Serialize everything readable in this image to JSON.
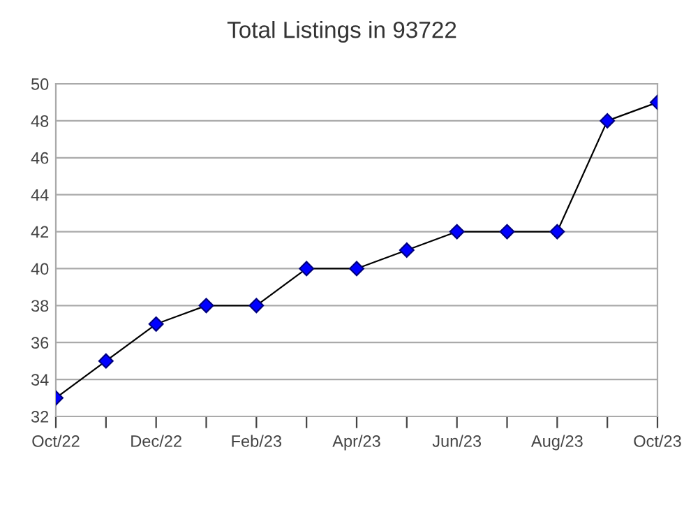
{
  "chart_data": {
    "type": "line",
    "title": "Total Listings in 93722",
    "categories": [
      "Oct/22",
      null,
      "Dec/22",
      null,
      "Feb/23",
      null,
      "Apr/23",
      null,
      "Jun/23",
      null,
      "Aug/23",
      null,
      "Oct/23"
    ],
    "series": [
      {
        "color": "#0000ff",
        "values": [
          33,
          35,
          37,
          38,
          38,
          40,
          40,
          41,
          42,
          42,
          42,
          48,
          49
        ]
      }
    ],
    "ylim": [
      32,
      50
    ],
    "yticks": [
      32,
      34,
      36,
      38,
      40,
      42,
      44,
      46,
      48,
      50
    ],
    "grid": "y",
    "marker": "diamond",
    "line_style": "solid",
    "legend": false
  }
}
